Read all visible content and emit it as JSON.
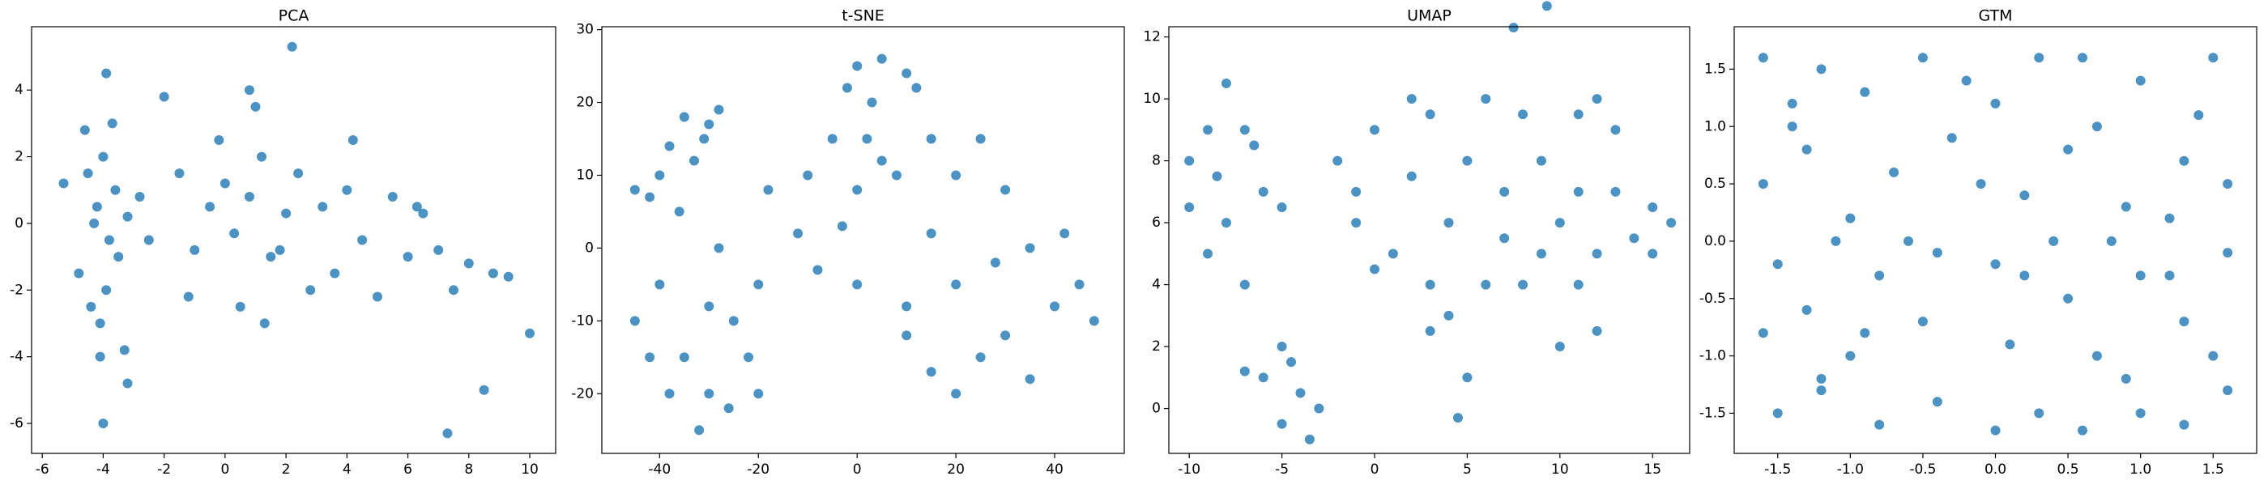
{
  "chart_data": [
    {
      "type": "scatter",
      "title": "PCA",
      "color": "#1f77b4",
      "x": [
        -4.2,
        -3.8,
        -4.5,
        -3.5,
        -4.0,
        -3.9,
        -4.3,
        -3.6,
        -4.8,
        -3.2,
        -4.1,
        -3.7,
        -4.4,
        -2.8,
        -5.3,
        -4.6,
        -3.3,
        -2.5,
        -1.5,
        -1.0,
        -0.5,
        0,
        0.3,
        0.8,
        1.2,
        1.5,
        2.0,
        2.4,
        0.5,
        -0.2,
        1.0,
        1.8,
        2.8,
        3.2,
        3.6,
        4.0,
        4.5,
        5.0,
        5.5,
        6.0,
        6.5,
        7.0,
        7.5,
        8.0,
        8.8,
        9.3,
        10.0,
        8.5,
        7.3,
        -4.0,
        2.2,
        -3.9,
        -4.1,
        1.3,
        -3.2,
        -2.0,
        4.2,
        6.3,
        -1.2,
        0.8
      ],
      "values": [
        0.5,
        -0.5,
        1.5,
        -1.0,
        2.0,
        -2.0,
        0.0,
        1.0,
        -1.5,
        0.2,
        -3.0,
        3.0,
        -2.5,
        0.8,
        1.2,
        2.8,
        -3.8,
        -0.5,
        1.5,
        -0.8,
        0.5,
        1.2,
        -0.3,
        0.8,
        2.0,
        -1.0,
        0.3,
        1.5,
        -2.5,
        2.5,
        3.5,
        -0.8,
        -2.0,
        0.5,
        -1.5,
        1.0,
        -0.5,
        -2.2,
        0.8,
        -1.0,
        0.3,
        -0.8,
        -2.0,
        -1.2,
        -1.5,
        -1.6,
        -3.3,
        -5.0,
        -6.3,
        -6.0,
        5.3,
        4.5,
        -4.0,
        -3.0,
        -4.8,
        3.8,
        2.5,
        0.5,
        -2.2,
        4.0
      ],
      "xlim": [
        -6.35,
        10.85
      ],
      "ylim": [
        -6.9,
        5.9
      ],
      "xticks": [
        -6,
        -4,
        -2,
        0,
        2,
        4,
        6,
        8,
        10
      ],
      "yticks": [
        -6,
        -4,
        -2,
        0,
        2,
        4
      ]
    },
    {
      "type": "scatter",
      "title": "t-SNE",
      "color": "#1f77b4",
      "x": [
        -45,
        -40,
        -35,
        -30,
        -38,
        -33,
        -28,
        -42,
        -36,
        -31,
        -45,
        -40,
        -35,
        -30,
        -32,
        -25,
        -20,
        -28,
        -38,
        -22,
        -30,
        -42,
        -26,
        -20,
        0,
        5,
        -2,
        10,
        3,
        -10,
        -5,
        0,
        5,
        -12,
        -8,
        0,
        -18,
        2,
        -3,
        8,
        15,
        12,
        20,
        15,
        25,
        30,
        28,
        35,
        40,
        45,
        48,
        42,
        10,
        15,
        20,
        25,
        30,
        35,
        20,
        10
      ],
      "values": [
        8,
        10,
        18,
        17,
        14,
        12,
        19,
        7,
        5,
        15,
        -10,
        -5,
        -15,
        -20,
        -25,
        -10,
        -5,
        0,
        -20,
        -15,
        -8,
        -15,
        -22,
        -20,
        25,
        26,
        22,
        24,
        20,
        10,
        15,
        8,
        12,
        2,
        -3,
        -5,
        8,
        15,
        3,
        10,
        15,
        22,
        10,
        2,
        15,
        8,
        -2,
        0,
        -8,
        -5,
        -10,
        2,
        -12,
        -17,
        -20,
        -15,
        -12,
        -18,
        -5,
        -8
      ],
      "xlim": [
        -51.7,
        54.1
      ],
      "ylim": [
        -28.2,
        30.4
      ],
      "xticks": [
        -40,
        -20,
        0,
        20,
        40
      ],
      "yticks": [
        -20,
        -10,
        0,
        10,
        20,
        30
      ]
    },
    {
      "type": "scatter",
      "title": "UMAP",
      "color": "#1f77b4",
      "x": [
        -10,
        -9,
        -8,
        -7,
        -6,
        -8,
        -9,
        -7,
        -5,
        -10,
        -8.5,
        -6.5,
        -5,
        -6,
        -7,
        -4,
        -3.5,
        -5,
        -4.5,
        -3,
        -2,
        0,
        -1,
        2,
        3,
        1,
        4,
        5,
        6,
        7,
        4,
        5,
        3,
        7.5,
        9.3,
        4.5,
        8,
        9,
        10,
        11,
        12,
        13,
        14,
        15,
        16,
        11,
        12,
        10,
        8,
        9,
        13,
        15,
        6,
        2,
        0,
        -1,
        12,
        7,
        3,
        11
      ],
      "values": [
        8,
        9,
        10.5,
        9,
        7,
        6,
        5,
        4,
        6.5,
        6.5,
        7.5,
        8.5,
        2,
        1,
        1.2,
        0.5,
        -1,
        -0.5,
        1.5,
        0,
        8,
        9,
        6,
        7.5,
        9.5,
        5,
        6,
        8,
        10,
        7,
        3,
        1,
        2.5,
        12.3,
        13,
        -0.3,
        9.5,
        8,
        6,
        9.5,
        10,
        7,
        5.5,
        6.5,
        6,
        4,
        2.5,
        2,
        4,
        5,
        9,
        5,
        4,
        10,
        4.5,
        7,
        5,
        5.5,
        4,
        7
      ],
      "xlim": [
        -11.1,
        17.0
      ],
      "ylim": [
        -1.45,
        12.33
      ],
      "xticks": [
        -10,
        -5,
        0,
        5,
        10,
        15
      ],
      "yticks": [
        0,
        2,
        4,
        6,
        8,
        10,
        12
      ]
    },
    {
      "type": "scatter",
      "title": "GTM",
      "color": "#1f77b4",
      "x": [
        -1.6,
        -1.4,
        -1.2,
        -0.9,
        -0.5,
        0,
        0.3,
        0.6,
        1.0,
        1.5,
        -1.6,
        -1.3,
        -1.0,
        -0.7,
        -0.3,
        0.2,
        0.5,
        0.9,
        1.3,
        1.6,
        -1.5,
        -1.1,
        -0.8,
        -0.4,
        0.0,
        0.2,
        0.4,
        0.8,
        1.2,
        1.6,
        -1.6,
        -1.3,
        -1.0,
        -0.9,
        -0.5,
        0.1,
        0.5,
        0.9,
        1.3,
        1.5,
        -1.5,
        -1.2,
        -0.8,
        -0.4,
        0.0,
        0.3,
        0.6,
        1.0,
        1.3,
        1.6,
        -1.4,
        1.4,
        -0.2,
        0.7,
        -0.6,
        1.0,
        -1.2,
        0.7,
        -0.1,
        1.2
      ],
      "values": [
        1.6,
        1.2,
        1.5,
        1.3,
        1.6,
        1.2,
        1.6,
        1.6,
        1.4,
        1.6,
        0.5,
        0.8,
        0.2,
        0.6,
        0.9,
        0.4,
        0.8,
        0.3,
        0.7,
        0.5,
        -0.2,
        0.0,
        -0.3,
        -0.1,
        -0.2,
        -0.3,
        0.0,
        0.0,
        -0.3,
        -0.1,
        -0.8,
        -0.6,
        -1.0,
        -0.8,
        -0.7,
        -0.9,
        -0.5,
        -1.2,
        -0.7,
        -1.0,
        -1.5,
        -1.3,
        -1.6,
        -1.4,
        -1.65,
        -1.5,
        -1.65,
        -1.5,
        -1.6,
        -1.3,
        1.0,
        1.1,
        1.4,
        1.0,
        0.0,
        -0.3,
        -1.2,
        -1.0,
        0.5,
        0.2
      ],
      "xlim": [
        -1.8,
        1.8
      ],
      "ylim": [
        -1.85,
        1.87
      ],
      "xticks": [
        -1.5,
        {
          "value": -1.0,
          "label": "-1.0"
        },
        -0.5,
        {
          "value": 0.0,
          "label": "0.0"
        },
        0.5,
        {
          "value": 1.0,
          "label": "1.0"
        },
        1.5
      ],
      "yticks": [
        -1.5,
        {
          "value": -1.0,
          "label": "-1.0"
        },
        -0.5,
        {
          "value": 0.0,
          "label": "0.0"
        },
        0.5,
        {
          "value": 1.0,
          "label": "1.0"
        },
        1.5
      ]
    }
  ]
}
